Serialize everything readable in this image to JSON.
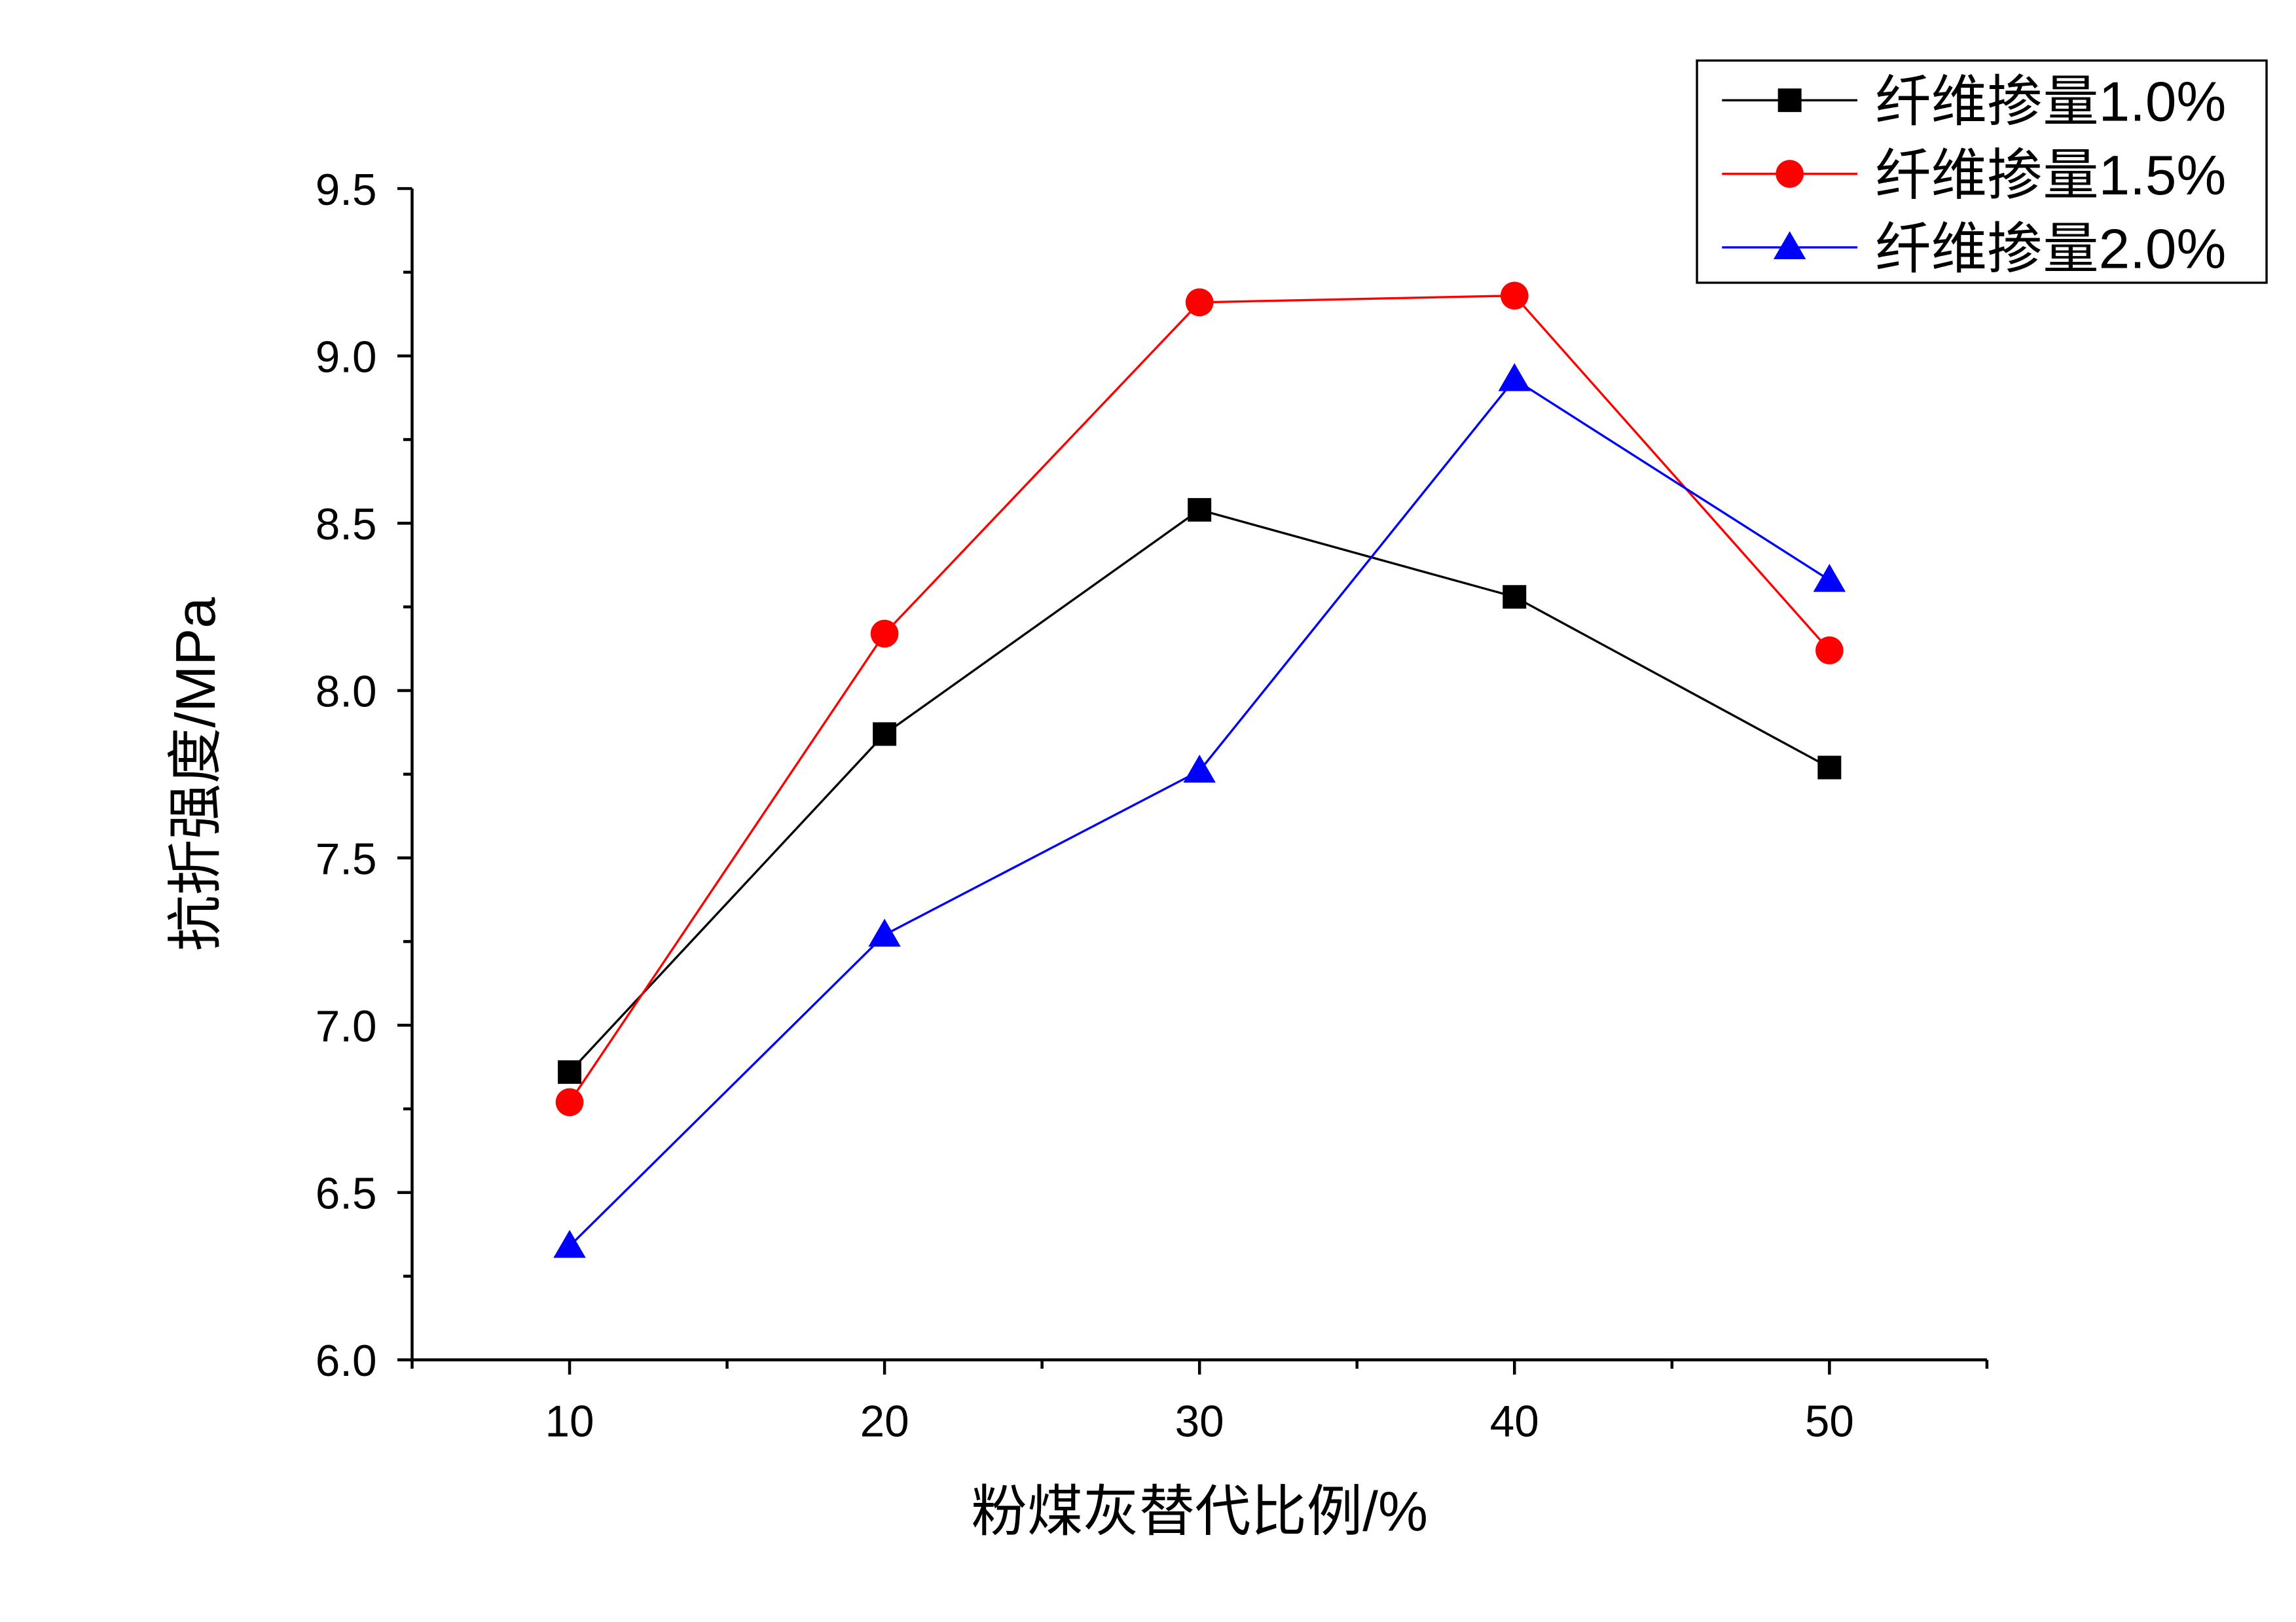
{
  "chart_data": {
    "type": "line",
    "title": "",
    "xlabel": "粉煤灰替代比例/%",
    "ylabel": "抗折强度/MPa",
    "x": [
      10,
      20,
      30,
      40,
      50
    ],
    "xlim": [
      5,
      55
    ],
    "ylim": [
      6.0,
      9.5
    ],
    "xticks": [
      "10",
      "20",
      "30",
      "40",
      "50"
    ],
    "yticks": [
      "6.0",
      "6.5",
      "7.0",
      "7.5",
      "8.0",
      "8.5",
      "9.0",
      "9.5"
    ],
    "grid": false,
    "legend_position": "top-right",
    "series": [
      {
        "name": "纤维掺量1.0%",
        "color": "#000000",
        "marker": "square",
        "values": [
          6.86,
          7.87,
          8.54,
          8.28,
          7.77
        ]
      },
      {
        "name": "纤维掺量1.5%",
        "color": "#ff0000",
        "marker": "circle",
        "values": [
          6.77,
          8.17,
          9.16,
          9.18,
          8.12
        ]
      },
      {
        "name": "纤维掺量2.0%",
        "color": "#0000ff",
        "marker": "triangle",
        "values": [
          6.34,
          7.27,
          7.76,
          8.93,
          8.33
        ]
      }
    ]
  }
}
